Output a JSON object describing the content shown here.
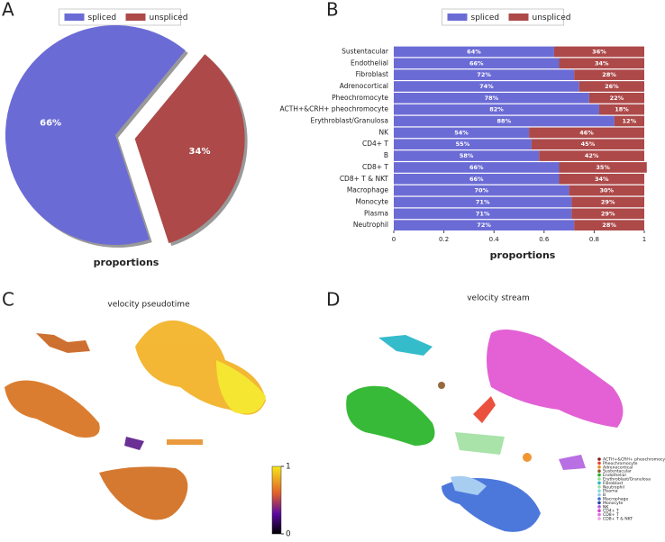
{
  "chart_data": [
    {
      "type": "pie",
      "label": "A",
      "title": "proportions",
      "categories": [
        "spliced",
        "unspliced"
      ],
      "values": [
        66,
        34
      ],
      "value_labels": [
        "66%",
        "34%"
      ],
      "colors": [
        "#6b6bd6",
        "#ad4949"
      ]
    },
    {
      "type": "bar",
      "label": "B",
      "title": "proportions",
      "categories": [
        "Sustentacular",
        "Endothelial",
        "Fibroblast",
        "Adrenocortical",
        "Pheochromocyte",
        "ACTH+&CRH+ pheochromocyte",
        "Erythroblast/Granulosa",
        "NK",
        "CD4+ T",
        "B",
        "CD8+ T",
        "CD8+ T & NKT",
        "Macrophage",
        "Monocyte",
        "Plasma",
        "Neutrophil"
      ],
      "series": [
        {
          "name": "spliced",
          "color": "#6b6bd6",
          "values": [
            0.64,
            0.66,
            0.72,
            0.74,
            0.78,
            0.82,
            0.88,
            0.54,
            0.55,
            0.58,
            0.66,
            0.66,
            0.7,
            0.71,
            0.71,
            0.72
          ],
          "value_labels": [
            "64%",
            "66%",
            "72%",
            "74%",
            "78%",
            "82%",
            "88%",
            "54%",
            "55%",
            "58%",
            "66%",
            "66%",
            "70%",
            "71%",
            "71%",
            "72%"
          ]
        },
        {
          "name": "unspliced",
          "color": "#ad4949",
          "values": [
            0.36,
            0.34,
            0.28,
            0.26,
            0.22,
            0.18,
            0.12,
            0.46,
            0.45,
            0.42,
            0.35,
            0.34,
            0.3,
            0.29,
            0.29,
            0.28
          ],
          "value_labels": [
            "36%",
            "34%",
            "28%",
            "26%",
            "22%",
            "18%",
            "12%",
            "46%",
            "45%",
            "42%",
            "35%",
            "34%",
            "30%",
            "29%",
            "29%",
            "28%"
          ]
        }
      ],
      "xlim": [
        0,
        1
      ],
      "xticks": [
        0,
        0.2,
        0.4,
        0.6,
        0.8,
        1
      ]
    },
    {
      "type": "embedding",
      "label": "C",
      "title": "velocity pseudotime",
      "colorbar": {
        "lim": [
          0,
          1
        ],
        "ticks": [
          0,
          1
        ]
      }
    },
    {
      "type": "embedding",
      "label": "D",
      "title": "velocity stream",
      "categories": [
        "ACTH+&CRH+ pheochromocyte",
        "Pheochromocyte",
        "Adrenocortical",
        "Sustentacular",
        "Endothelial",
        "Erythroblast/Granulosa",
        "Fibroblast",
        "Neutrophil",
        "Plasma",
        "B",
        "Macrophage",
        "Monocyte",
        "NK",
        "CD4+ T",
        "CD8+ T",
        "CD8+ T & NKT"
      ],
      "colors": [
        "#8b1a1a",
        "#e8402a",
        "#f08a1c",
        "#8b5a2b",
        "#22b322",
        "#90e090",
        "#1fb5c6",
        "#a0e0a0",
        "#7fdddd",
        "#9ec8f0",
        "#3a6ad8",
        "#2244aa",
        "#b060e0",
        "#d040d0",
        "#e070e0",
        "#f0a0e0"
      ]
    }
  ]
}
